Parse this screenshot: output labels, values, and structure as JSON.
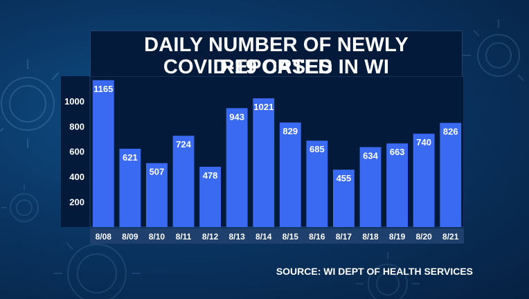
{
  "title": {
    "line1": "DAILY NUMBER OF NEWLY REPORTED",
    "line2": "COVID-19 CASES IN WI"
  },
  "source": "SOURCE: WI DEPT OF HEALTH SERVICES",
  "colors": {
    "bar": "#3a6af2",
    "plot_bg": "#041a3a",
    "text": "#ffffff"
  },
  "chart_data": {
    "type": "bar",
    "title": "DAILY NUMBER OF NEWLY REPORTED COVID-19 CASES IN WI",
    "categories": [
      "8/08",
      "8/09",
      "8/10",
      "8/11",
      "8/12",
      "8/13",
      "8/14",
      "8/15",
      "8/16",
      "8/17",
      "8/18",
      "8/19",
      "8/20",
      "8/21"
    ],
    "values": [
      1165,
      621,
      507,
      724,
      478,
      943,
      1021,
      829,
      685,
      455,
      634,
      663,
      740,
      826
    ],
    "yticks": [
      200,
      400,
      600,
      800,
      1000
    ],
    "ylim": [
      0,
      1175
    ],
    "xlabel": "",
    "ylabel": "",
    "grid": false,
    "data_labels": true
  }
}
